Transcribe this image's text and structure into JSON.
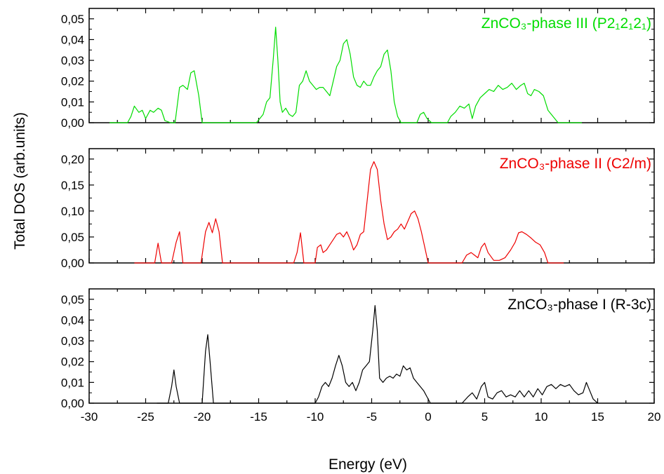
{
  "xlabel": "Energy (eV)",
  "ylabel": "Total DOS (arb.units)",
  "chart_data": [
    {
      "type": "line",
      "title": "ZnCO₃-phase III (P2₁2₁2₁)",
      "color": "#00dd00",
      "xlim": [
        -30,
        20
      ],
      "ylim": [
        0,
        0.055
      ],
      "yticks": [
        "0,00",
        "0,01",
        "0,02",
        "0,03",
        "0,04",
        "0,05"
      ],
      "xticks": [],
      "series": [
        {
          "x": [
            -28.2,
            -26.6,
            -26.3,
            -26.0,
            -25.6,
            -25.3,
            -25.0,
            -24.6,
            -24.3,
            -23.9,
            -23.6,
            -23.3,
            -22.8,
            -22.4,
            -22.0,
            -21.7,
            -21.3,
            -21.0,
            -20.7,
            -20.3,
            -20.0,
            -15.2,
            -14.9,
            -14.6,
            -14.3,
            -14.0,
            -13.7,
            -13.5,
            -13.3,
            -13.1,
            -12.9,
            -12.6,
            -12.3,
            -12.0,
            -11.7,
            -11.4,
            -11.1,
            -10.8,
            -10.5,
            -10.2,
            -9.9,
            -9.6,
            -9.3,
            -9.0,
            -8.7,
            -8.4,
            -8.1,
            -7.8,
            -7.5,
            -7.2,
            -6.9,
            -6.6,
            -6.3,
            -6.0,
            -5.7,
            -5.4,
            -5.1,
            -4.8,
            -4.5,
            -4.2,
            -3.9,
            -3.6,
            -3.3,
            -3.0,
            -2.7,
            -2.4,
            -2.0,
            -1.5,
            -1.0,
            -0.7,
            -0.4,
            -0.1,
            0.3,
            1.0,
            1.7,
            2.0,
            2.4,
            2.8,
            3.2,
            3.6,
            3.9,
            4.2,
            4.6,
            5.0,
            5.4,
            5.8,
            6.2,
            6.6,
            7.0,
            7.4,
            7.8,
            8.2,
            8.5,
            8.8,
            9.1,
            9.4,
            9.8,
            10.2,
            10.6,
            11.5,
            13.6
          ],
          "y": [
            0.0,
            0.0,
            0.003,
            0.008,
            0.005,
            0.006,
            0.002,
            0.006,
            0.005,
            0.007,
            0.006,
            0.001,
            0.0,
            0.0,
            0.017,
            0.018,
            0.016,
            0.024,
            0.025,
            0.013,
            0.0,
            0.0,
            0.002,
            0.004,
            0.01,
            0.012,
            0.031,
            0.046,
            0.03,
            0.01,
            0.005,
            0.007,
            0.004,
            0.003,
            0.005,
            0.018,
            0.02,
            0.025,
            0.02,
            0.018,
            0.016,
            0.017,
            0.017,
            0.015,
            0.013,
            0.02,
            0.027,
            0.03,
            0.038,
            0.04,
            0.033,
            0.022,
            0.018,
            0.017,
            0.02,
            0.018,
            0.018,
            0.022,
            0.025,
            0.027,
            0.033,
            0.035,
            0.025,
            0.01,
            0.003,
            0.0,
            0.0,
            0.0,
            0.0,
            0.004,
            0.005,
            0.002,
            0.0,
            0.0,
            0.0,
            0.003,
            0.005,
            0.008,
            0.007,
            0.009,
            0.002,
            0.008,
            0.012,
            0.014,
            0.016,
            0.015,
            0.018,
            0.016,
            0.017,
            0.019,
            0.016,
            0.018,
            0.019,
            0.014,
            0.013,
            0.016,
            0.015,
            0.013,
            0.006,
            0.0,
            0.0
          ]
        }
      ]
    },
    {
      "type": "line",
      "title": "ZnCO₃-phase II (C2/m)",
      "color": "#ee0000",
      "xlim": [
        -30,
        20
      ],
      "ylim": [
        0,
        0.22
      ],
      "yticks": [
        "0,00",
        "0,05",
        "0,10",
        "0,15",
        "0,20"
      ],
      "xticks": [],
      "series": [
        {
          "x": [
            -26.0,
            -24.2,
            -23.9,
            -23.6,
            -22.7,
            -22.3,
            -22.0,
            -21.7,
            -20.1,
            -19.7,
            -19.4,
            -19.1,
            -18.8,
            -18.5,
            -18.2,
            -11.9,
            -11.6,
            -11.3,
            -11.0,
            -10.0,
            -9.8,
            -9.5,
            -9.3,
            -9.0,
            -8.7,
            -8.4,
            -8.1,
            -7.8,
            -7.5,
            -7.2,
            -6.9,
            -6.6,
            -6.3,
            -6.0,
            -5.7,
            -5.4,
            -5.1,
            -4.8,
            -4.5,
            -4.2,
            -3.9,
            -3.6,
            -3.3,
            -3.0,
            -2.7,
            -2.4,
            -2.1,
            -1.8,
            -1.5,
            -1.2,
            -0.9,
            -0.6,
            -0.3,
            0.0,
            0.5,
            3.0,
            3.4,
            3.8,
            4.1,
            4.4,
            4.7,
            5.0,
            5.3,
            5.8,
            6.3,
            6.8,
            7.3,
            7.7,
            8.0,
            8.3,
            8.7,
            9.1,
            9.5,
            9.9,
            10.3,
            10.6,
            12.0
          ],
          "y": [
            0.0,
            0.0,
            0.038,
            0.0,
            0.0,
            0.04,
            0.06,
            0.0,
            0.0,
            0.06,
            0.078,
            0.058,
            0.085,
            0.06,
            0.0,
            0.0,
            0.02,
            0.058,
            0.0,
            0.0,
            0.03,
            0.035,
            0.02,
            0.025,
            0.035,
            0.045,
            0.055,
            0.058,
            0.05,
            0.06,
            0.045,
            0.025,
            0.035,
            0.055,
            0.06,
            0.12,
            0.18,
            0.195,
            0.18,
            0.12,
            0.075,
            0.045,
            0.05,
            0.06,
            0.065,
            0.075,
            0.065,
            0.08,
            0.095,
            0.1,
            0.085,
            0.06,
            0.03,
            0.0,
            0.0,
            0.0,
            0.015,
            0.02,
            0.015,
            0.01,
            0.03,
            0.038,
            0.02,
            0.005,
            0.005,
            0.01,
            0.025,
            0.04,
            0.058,
            0.06,
            0.055,
            0.048,
            0.04,
            0.035,
            0.02,
            0.0,
            0.0
          ]
        }
      ]
    },
    {
      "type": "line",
      "title": "ZnCO₃-phase I (R-3c)",
      "color": "#000000",
      "xlim": [
        -30,
        20
      ],
      "ylim": [
        0,
        0.055
      ],
      "yticks": [
        "0,00",
        "0,01",
        "0,02",
        "0,03",
        "0,04",
        "0,05"
      ],
      "xticks": [
        "-30",
        "-25",
        "-20",
        "-15",
        "-10",
        "-5",
        "0",
        "5",
        "10",
        "15",
        "20"
      ],
      "series": [
        {
          "x": [
            -24.0,
            -23.0,
            -22.7,
            -22.5,
            -22.3,
            -22.0,
            -20.0,
            -19.7,
            -19.5,
            -19.3,
            -19.0,
            -10.0,
            -9.7,
            -9.4,
            -9.1,
            -8.8,
            -8.5,
            -8.2,
            -7.9,
            -7.6,
            -7.3,
            -7.0,
            -6.7,
            -6.4,
            -6.1,
            -5.8,
            -5.5,
            -5.2,
            -4.9,
            -4.7,
            -4.5,
            -4.3,
            -4.0,
            -3.7,
            -3.4,
            -3.1,
            -2.8,
            -2.5,
            -2.2,
            -1.9,
            -1.6,
            -1.3,
            -1.0,
            -0.7,
            -0.4,
            -0.1,
            0.2,
            1.0,
            3.0,
            3.5,
            3.9,
            4.3,
            4.7,
            5.0,
            5.3,
            5.7,
            6.1,
            6.5,
            6.9,
            7.3,
            7.7,
            8.1,
            8.5,
            8.9,
            9.3,
            9.7,
            10.1,
            10.5,
            10.9,
            11.3,
            11.7,
            12.1,
            12.5,
            12.9,
            13.3,
            13.7,
            14.0,
            14.3,
            14.6,
            15.0
          ],
          "y": [
            0.0,
            0.0,
            0.008,
            0.016,
            0.008,
            0.0,
            0.0,
            0.025,
            0.033,
            0.02,
            0.0,
            0.0,
            0.003,
            0.008,
            0.01,
            0.008,
            0.012,
            0.018,
            0.023,
            0.018,
            0.01,
            0.008,
            0.01,
            0.006,
            0.01,
            0.016,
            0.018,
            0.02,
            0.035,
            0.047,
            0.035,
            0.012,
            0.01,
            0.012,
            0.013,
            0.012,
            0.014,
            0.013,
            0.018,
            0.016,
            0.017,
            0.012,
            0.01,
            0.008,
            0.006,
            0.003,
            0.0,
            0.0,
            0.0,
            0.003,
            0.005,
            0.002,
            0.008,
            0.01,
            0.003,
            0.002,
            0.005,
            0.006,
            0.003,
            0.004,
            0.003,
            0.006,
            0.003,
            0.006,
            0.003,
            0.007,
            0.004,
            0.008,
            0.009,
            0.007,
            0.009,
            0.008,
            0.009,
            0.006,
            0.004,
            0.005,
            0.01,
            0.006,
            0.002,
            0.0
          ]
        }
      ]
    }
  ]
}
